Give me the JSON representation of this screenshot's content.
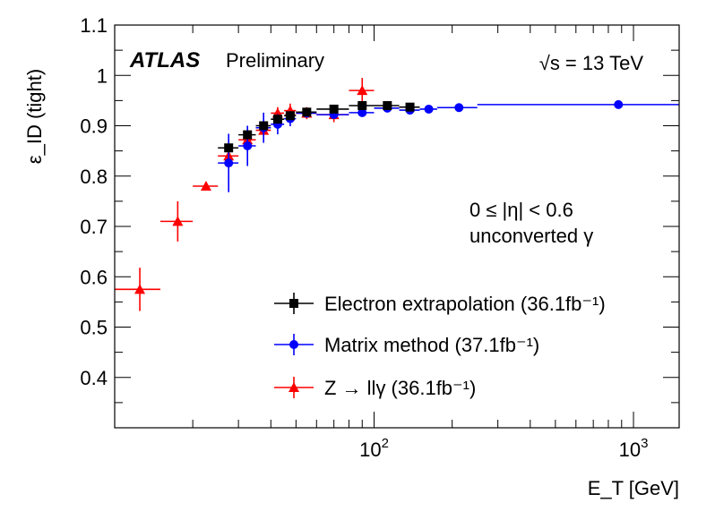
{
  "chart_data": {
    "type": "scatter",
    "xscale": "log",
    "xlim": [
      10,
      1500
    ],
    "ylim": [
      0.3,
      1.1
    ],
    "xlabel": "E_T [GeV]",
    "ylabel": "ε_ID (tight)",
    "x_ticks": [
      {
        "value": 100,
        "base": "10",
        "exp": "2"
      },
      {
        "value": 1000,
        "base": "10",
        "exp": "3"
      }
    ],
    "y_ticks": [
      "0.4",
      "0.5",
      "0.6",
      "0.7",
      "0.8",
      "0.9",
      "1",
      "1.1"
    ],
    "grid": false,
    "legend_position": "bottom-right",
    "experiment": "ATLAS",
    "status": "Preliminary",
    "energy_label": "√s = 13 TeV",
    "region_line1": "0 ≤ |η| < 0.6",
    "region_line2": "unconverted γ",
    "series": [
      {
        "name": "Electron extrapolation (36.1fb⁻¹)",
        "color": "#000000",
        "marker": "square",
        "points": [
          {
            "x": 27.5,
            "xlo": 25,
            "xhi": 30,
            "y": 0.856,
            "err": 0.005
          },
          {
            "x": 32.5,
            "xlo": 30,
            "xhi": 35,
            "y": 0.882,
            "err": 0.005
          },
          {
            "x": 37.5,
            "xlo": 35,
            "xhi": 40,
            "y": 0.9,
            "err": 0.004
          },
          {
            "x": 42.5,
            "xlo": 40,
            "xhi": 45,
            "y": 0.913,
            "err": 0.004
          },
          {
            "x": 47.5,
            "xlo": 45,
            "xhi": 50,
            "y": 0.92,
            "err": 0.004
          },
          {
            "x": 55,
            "xlo": 50,
            "xhi": 60,
            "y": 0.927,
            "err": 0.003
          },
          {
            "x": 70,
            "xlo": 60,
            "xhi": 80,
            "y": 0.933,
            "err": 0.003
          },
          {
            "x": 90,
            "xlo": 80,
            "xhi": 100,
            "y": 0.94,
            "err": 0.003
          },
          {
            "x": 112.5,
            "xlo": 100,
            "xhi": 125,
            "y": 0.94,
            "err": 0.004
          },
          {
            "x": 137.5,
            "xlo": 125,
            "xhi": 150,
            "y": 0.937,
            "err": 0.005
          }
        ]
      },
      {
        "name": "Matrix method (37.1fb⁻¹)",
        "color": "#0000ff",
        "marker": "circle",
        "points": [
          {
            "x": 27.5,
            "xlo": 25,
            "xhi": 30,
            "y": 0.826,
            "err": 0.058
          },
          {
            "x": 32.5,
            "xlo": 30,
            "xhi": 35,
            "y": 0.86,
            "err": 0.04
          },
          {
            "x": 37.5,
            "xlo": 35,
            "xhi": 40,
            "y": 0.896,
            "err": 0.03
          },
          {
            "x": 42.5,
            "xlo": 40,
            "xhi": 45,
            "y": 0.903,
            "err": 0.02
          },
          {
            "x": 47.5,
            "xlo": 45,
            "xhi": 50,
            "y": 0.914,
            "err": 0.015
          },
          {
            "x": 55,
            "xlo": 50,
            "xhi": 60,
            "y": 0.925,
            "err": 0.008
          },
          {
            "x": 70,
            "xlo": 60,
            "xhi": 80,
            "y": 0.922,
            "err": 0.007
          },
          {
            "x": 90,
            "xlo": 80,
            "xhi": 100,
            "y": 0.926,
            "err": 0.006
          },
          {
            "x": 112.5,
            "xlo": 100,
            "xhi": 125,
            "y": 0.935,
            "err": 0.005
          },
          {
            "x": 137.5,
            "xlo": 125,
            "xhi": 150,
            "y": 0.931,
            "err": 0.005
          },
          {
            "x": 162.5,
            "xlo": 150,
            "xhi": 175,
            "y": 0.933,
            "err": 0.004
          },
          {
            "x": 212.5,
            "xlo": 175,
            "xhi": 250,
            "y": 0.936,
            "err": 0.004
          },
          {
            "x": 875,
            "xlo": 250,
            "xhi": 1500,
            "y": 0.942,
            "err": 0.008
          }
        ]
      },
      {
        "name": "Z → llγ (36.1fb⁻¹)",
        "color": "#ff0000",
        "marker": "triangle",
        "points": [
          {
            "x": 12.5,
            "xlo": 10,
            "xhi": 15,
            "y": 0.575,
            "err": 0.043
          },
          {
            "x": 17.5,
            "xlo": 15,
            "xhi": 20,
            "y": 0.71,
            "err": 0.04
          },
          {
            "x": 22.5,
            "xlo": 20,
            "xhi": 25,
            "y": 0.78,
            "err": 0.008
          },
          {
            "x": 27.5,
            "xlo": 25,
            "xhi": 30,
            "y": 0.84,
            "err": 0.01
          },
          {
            "x": 32.5,
            "xlo": 30,
            "xhi": 35,
            "y": 0.872,
            "err": 0.01
          },
          {
            "x": 37.5,
            "xlo": 35,
            "xhi": 40,
            "y": 0.891,
            "err": 0.01
          },
          {
            "x": 42.5,
            "xlo": 40,
            "xhi": 45,
            "y": 0.925,
            "err": 0.012
          },
          {
            "x": 47.5,
            "xlo": 45,
            "xhi": 50,
            "y": 0.93,
            "err": 0.014
          },
          {
            "x": 55,
            "xlo": 50,
            "xhi": 60,
            "y": 0.925,
            "err": 0.012
          },
          {
            "x": 70,
            "xlo": 60,
            "xhi": 80,
            "y": 0.922,
            "err": 0.015
          },
          {
            "x": 90,
            "xlo": 80,
            "xhi": 100,
            "y": 0.97,
            "err": 0.025
          }
        ]
      }
    ]
  }
}
